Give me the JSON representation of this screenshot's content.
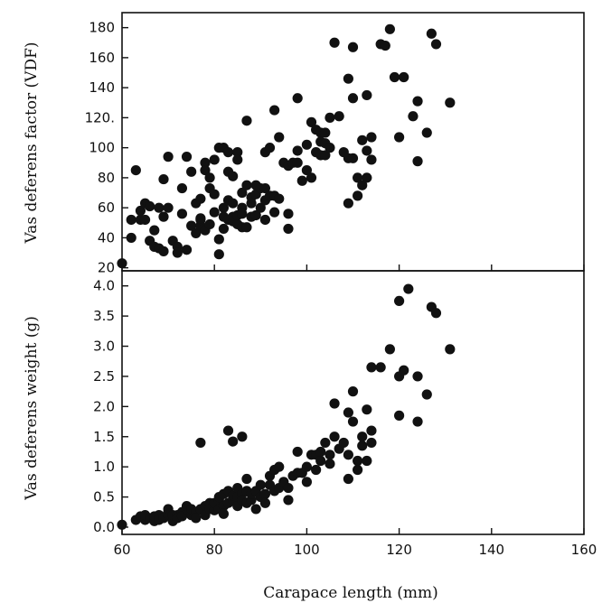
{
  "chart_data": [
    {
      "type": "scatter",
      "panel": "top",
      "xlabel": "Carapace length (mm)",
      "ylabel": "Vas deferens factor (VDF)",
      "xlim": [
        60,
        160
      ],
      "ylim": [
        18,
        190
      ],
      "yticks": [
        20,
        40,
        60,
        80,
        100,
        120,
        140,
        160,
        180
      ],
      "ytick_labels": [
        "20",
        "40",
        "60",
        "80",
        "100",
        "120.",
        "140",
        "160",
        "180"
      ],
      "xticks": [
        60,
        80,
        100,
        120,
        140,
        160
      ],
      "grid": false,
      "points": [
        [
          60,
          23
        ],
        [
          62,
          52
        ],
        [
          62,
          40
        ],
        [
          63,
          85
        ],
        [
          64,
          52
        ],
        [
          64,
          58
        ],
        [
          65,
          63
        ],
        [
          65,
          52
        ],
        [
          66,
          38
        ],
        [
          66,
          61
        ],
        [
          67,
          34
        ],
        [
          67,
          45
        ],
        [
          68,
          60
        ],
        [
          68,
          33
        ],
        [
          69,
          31
        ],
        [
          69,
          79
        ],
        [
          69,
          54
        ],
        [
          70,
          94
        ],
        [
          70,
          60
        ],
        [
          71,
          38
        ],
        [
          72,
          34
        ],
        [
          72,
          30
        ],
        [
          73,
          56
        ],
        [
          73,
          73
        ],
        [
          74,
          94
        ],
        [
          74,
          32
        ],
        [
          75,
          84
        ],
        [
          75,
          48
        ],
        [
          76,
          43
        ],
        [
          76,
          63
        ],
        [
          77,
          48
        ],
        [
          77,
          66
        ],
        [
          77,
          52
        ],
        [
          77,
          53
        ],
        [
          78,
          90
        ],
        [
          78,
          85
        ],
        [
          78,
          45
        ],
        [
          79,
          80
        ],
        [
          79,
          73
        ],
        [
          79,
          49
        ],
        [
          80,
          92
        ],
        [
          80,
          57
        ],
        [
          80,
          69
        ],
        [
          81,
          100
        ],
        [
          81,
          39
        ],
        [
          81,
          29
        ],
        [
          82,
          60
        ],
        [
          82,
          54
        ],
        [
          82,
          46
        ],
        [
          82,
          100
        ],
        [
          83,
          97
        ],
        [
          83,
          84
        ],
        [
          83,
          65
        ],
        [
          83,
          52
        ],
        [
          84,
          54
        ],
        [
          84,
          51
        ],
        [
          84,
          63
        ],
        [
          84,
          81
        ],
        [
          85,
          49
        ],
        [
          85,
          97
        ],
        [
          85,
          92
        ],
        [
          85,
          55
        ],
        [
          86,
          60
        ],
        [
          86,
          47
        ],
        [
          86,
          70
        ],
        [
          86,
          56
        ],
        [
          87,
          75
        ],
        [
          87,
          118
        ],
        [
          87,
          47
        ],
        [
          88,
          63
        ],
        [
          88,
          54
        ],
        [
          88,
          67
        ],
        [
          89,
          75
        ],
        [
          89,
          69
        ],
        [
          89,
          55
        ],
        [
          90,
          60
        ],
        [
          90,
          73
        ],
        [
          91,
          52
        ],
        [
          91,
          65
        ],
        [
          91,
          97
        ],
        [
          91,
          73
        ],
        [
          92,
          100
        ],
        [
          92,
          68
        ],
        [
          93,
          125
        ],
        [
          93,
          68
        ],
        [
          93,
          57
        ],
        [
          94,
          107
        ],
        [
          94,
          66
        ],
        [
          95,
          90
        ],
        [
          96,
          46
        ],
        [
          96,
          56
        ],
        [
          96,
          88
        ],
        [
          97,
          90
        ],
        [
          98,
          133
        ],
        [
          98,
          98
        ],
        [
          98,
          90
        ],
        [
          99,
          78
        ],
        [
          100,
          85
        ],
        [
          100,
          102
        ],
        [
          101,
          117
        ],
        [
          101,
          80
        ],
        [
          102,
          97
        ],
        [
          102,
          112
        ],
        [
          103,
          110
        ],
        [
          103,
          104
        ],
        [
          103,
          95
        ],
        [
          104,
          110
        ],
        [
          104,
          103
        ],
        [
          104,
          95
        ],
        [
          105,
          120
        ],
        [
          105,
          100
        ],
        [
          106,
          170
        ],
        [
          107,
          121
        ],
        [
          108,
          97
        ],
        [
          109,
          93
        ],
        [
          109,
          63
        ],
        [
          109,
          146
        ],
        [
          110,
          93
        ],
        [
          110,
          167
        ],
        [
          110,
          133
        ],
        [
          111,
          80
        ],
        [
          111,
          68
        ],
        [
          112,
          105
        ],
        [
          112,
          75
        ],
        [
          113,
          135
        ],
        [
          113,
          98
        ],
        [
          113,
          80
        ],
        [
          114,
          107
        ],
        [
          114,
          92
        ],
        [
          116,
          169
        ],
        [
          117,
          168
        ],
        [
          118,
          179
        ],
        [
          119,
          147
        ],
        [
          120,
          107
        ],
        [
          121,
          147
        ],
        [
          123,
          121
        ],
        [
          124,
          131
        ],
        [
          124,
          91
        ],
        [
          126,
          110
        ],
        [
          127,
          176
        ],
        [
          128,
          169
        ],
        [
          131,
          130
        ]
      ]
    },
    {
      "type": "scatter",
      "panel": "bottom",
      "xlabel": "Carapace length (mm)",
      "ylabel": "Vas deferens weight (g)",
      "xlim": [
        60,
        160
      ],
      "ylim": [
        -0.12,
        4.25
      ],
      "yticks": [
        0.0,
        0.5,
        1.0,
        1.5,
        2.0,
        2.5,
        3.0,
        3.5,
        4.0
      ],
      "ytick_labels": [
        "0.0",
        "0.5",
        "1.0",
        "1.5",
        "2.0",
        "2.5",
        "3.0",
        "3.5",
        "4.0"
      ],
      "xticks": [
        60,
        80,
        100,
        120,
        140,
        160
      ],
      "xtick_labels": [
        "60",
        "80",
        "100",
        "120",
        "140",
        "160"
      ],
      "grid": false,
      "points": [
        [
          60,
          0.04
        ],
        [
          63,
          0.12
        ],
        [
          64,
          0.18
        ],
        [
          65,
          0.12
        ],
        [
          65,
          0.2
        ],
        [
          66,
          0.15
        ],
        [
          67,
          0.1
        ],
        [
          67,
          0.18
        ],
        [
          68,
          0.2
        ],
        [
          68,
          0.12
        ],
        [
          69,
          0.15
        ],
        [
          70,
          0.25
        ],
        [
          70,
          0.2
        ],
        [
          70,
          0.3
        ],
        [
          71,
          0.1
        ],
        [
          71,
          0.2
        ],
        [
          72,
          0.2
        ],
        [
          72,
          0.15
        ],
        [
          73,
          0.25
        ],
        [
          73,
          0.18
        ],
        [
          74,
          0.3
        ],
        [
          74,
          0.35
        ],
        [
          75,
          0.2
        ],
        [
          75,
          0.3
        ],
        [
          76,
          0.25
        ],
        [
          76,
          0.15
        ],
        [
          77,
          0.3
        ],
        [
          77,
          1.4
        ],
        [
          78,
          0.35
        ],
        [
          78,
          0.2
        ],
        [
          79,
          0.4
        ],
        [
          79,
          0.3
        ],
        [
          80,
          0.28
        ],
        [
          80,
          0.4
        ],
        [
          81,
          0.45
        ],
        [
          81,
          0.3
        ],
        [
          81,
          0.5
        ],
        [
          82,
          0.35
        ],
        [
          82,
          0.55
        ],
        [
          82,
          0.22
        ],
        [
          83,
          0.4
        ],
        [
          83,
          0.6
        ],
        [
          83,
          1.6
        ],
        [
          84,
          0.45
        ],
        [
          84,
          0.52
        ],
        [
          84,
          1.42
        ],
        [
          85,
          0.5
        ],
        [
          85,
          0.35
        ],
        [
          85,
          0.65
        ],
        [
          86,
          0.55
        ],
        [
          86,
          0.45
        ],
        [
          86,
          1.5
        ],
        [
          87,
          0.4
        ],
        [
          87,
          0.8
        ],
        [
          87,
          0.6
        ],
        [
          88,
          0.45
        ],
        [
          88,
          0.55
        ],
        [
          89,
          0.6
        ],
        [
          89,
          0.3
        ],
        [
          90,
          0.5
        ],
        [
          90,
          0.7
        ],
        [
          91,
          0.55
        ],
        [
          91,
          0.4
        ],
        [
          92,
          0.7
        ],
        [
          92,
          0.85
        ],
        [
          93,
          0.6
        ],
        [
          93,
          0.95
        ],
        [
          94,
          1.0
        ],
        [
          94,
          0.65
        ],
        [
          95,
          0.75
        ],
        [
          96,
          0.65
        ],
        [
          96,
          0.45
        ],
        [
          97,
          0.85
        ],
        [
          98,
          1.25
        ],
        [
          98,
          0.9
        ],
        [
          99,
          0.9
        ],
        [
          100,
          1.0
        ],
        [
          100,
          0.75
        ],
        [
          101,
          1.2
        ],
        [
          102,
          1.2
        ],
        [
          102,
          0.95
        ],
        [
          103,
          1.1
        ],
        [
          103,
          1.25
        ],
        [
          104,
          1.4
        ],
        [
          105,
          1.2
        ],
        [
          105,
          1.05
        ],
        [
          106,
          2.05
        ],
        [
          106,
          1.5
        ],
        [
          107,
          1.3
        ],
        [
          108,
          1.4
        ],
        [
          109,
          0.8
        ],
        [
          109,
          1.9
        ],
        [
          109,
          1.2
        ],
        [
          110,
          1.75
        ],
        [
          110,
          2.25
        ],
        [
          111,
          0.95
        ],
        [
          111,
          1.1
        ],
        [
          112,
          1.5
        ],
        [
          112,
          1.35
        ],
        [
          113,
          1.95
        ],
        [
          113,
          1.1
        ],
        [
          114,
          1.6
        ],
        [
          114,
          1.4
        ],
        [
          114,
          2.65
        ],
        [
          116,
          2.65
        ],
        [
          118,
          2.95
        ],
        [
          120,
          2.5
        ],
        [
          120,
          1.85
        ],
        [
          120,
          3.75
        ],
        [
          121,
          2.6
        ],
        [
          122,
          3.95
        ],
        [
          124,
          2.5
        ],
        [
          124,
          1.75
        ],
        [
          126,
          2.2
        ],
        [
          127,
          3.65
        ],
        [
          128,
          3.55
        ],
        [
          131,
          2.95
        ]
      ]
    }
  ]
}
